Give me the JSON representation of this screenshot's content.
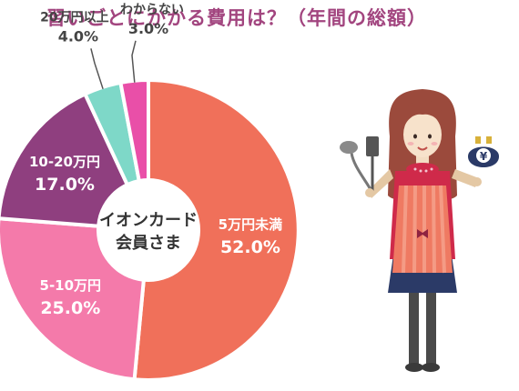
{
  "chart_data": {
    "type": "pie",
    "title": "習いごとにかかる費用は？（年間の総額）",
    "center_label": [
      "イオンカード",
      "会員さま"
    ],
    "unit": "%",
    "slices": [
      {
        "label": "5万円未満",
        "value": 52.0,
        "display": "52.0%",
        "color": "#f0705a"
      },
      {
        "label": "5-10万円",
        "value": 25.0,
        "display": "25.0%",
        "color": "#f47aaa"
      },
      {
        "label": "10-20万円",
        "value": 17.0,
        "display": "17.0%",
        "color": "#8f3f7f"
      },
      {
        "label": "20万円以上",
        "value": 4.0,
        "display": "4.0%",
        "color": "#7ed8c8"
      },
      {
        "label": "わからない",
        "value": 3.0,
        "display": "3.0%",
        "color": "#e94fa8"
      }
    ]
  },
  "colors": {
    "title": "#a2457f",
    "center_disc": "#ffffff"
  },
  "illustration": {
    "icons": [
      "woman-with-utensils-illustration",
      "ladle-icon",
      "spatula-icon",
      "yen-purse-icon"
    ],
    "purse_symbol": "¥"
  }
}
